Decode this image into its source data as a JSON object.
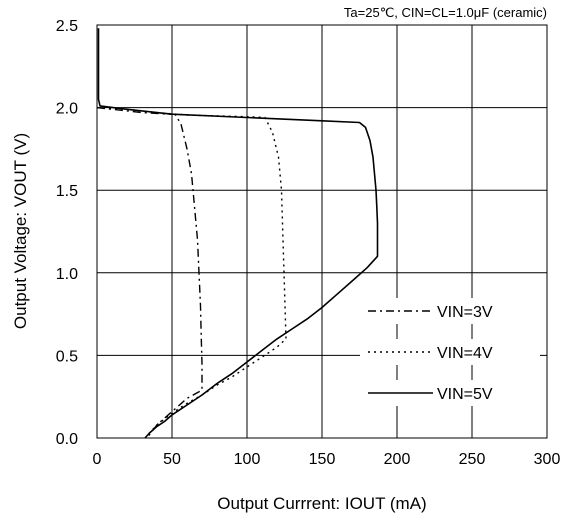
{
  "chart_data": {
    "type": "line",
    "title": "",
    "annotation": "Ta=25℃, CIN=CL=1.0μF (ceramic)",
    "xlabel": "Output Currrent: IOUT (mA)",
    "ylabel": "Output Voltage: VOUT (V)",
    "xlim": [
      0,
      300
    ],
    "ylim": [
      0,
      2.5
    ],
    "xticks": [
      0,
      50,
      100,
      150,
      200,
      250,
      300
    ],
    "yticks": [
      0.0,
      0.5,
      1.0,
      1.5,
      2.0,
      2.5
    ],
    "xtick_labels": [
      "0",
      "50",
      "100",
      "150",
      "200",
      "250",
      "300"
    ],
    "ytick_labels": [
      "0.0",
      "0.5",
      "1.0",
      "1.5",
      "2.0",
      "2.5"
    ],
    "grid": true,
    "legend_position": "bottom-right",
    "series": [
      {
        "name": "VIN=3V",
        "style": "dash-dot",
        "color": "#000000",
        "points": [
          [
            0,
            2.0
          ],
          [
            10,
            1.99
          ],
          [
            20,
            1.98
          ],
          [
            30,
            1.97
          ],
          [
            40,
            1.965
          ],
          [
            48,
            1.96
          ],
          [
            52,
            1.96
          ],
          [
            56,
            1.9
          ],
          [
            60,
            1.75
          ],
          [
            63,
            1.6
          ],
          [
            65,
            1.4
          ],
          [
            67,
            1.2
          ],
          [
            68,
            1.0
          ],
          [
            69,
            0.8
          ],
          [
            69.5,
            0.6
          ],
          [
            70,
            0.45
          ],
          [
            70,
            0.29
          ],
          [
            60,
            0.24
          ],
          [
            50,
            0.16
          ],
          [
            40,
            0.08
          ],
          [
            35,
            0.02
          ],
          [
            33,
            0.0
          ]
        ]
      },
      {
        "name": "VIN=4V",
        "style": "dotted",
        "color": "#000000",
        "points": [
          [
            0,
            2.0
          ],
          [
            20,
            1.99
          ],
          [
            40,
            1.97
          ],
          [
            60,
            1.955
          ],
          [
            80,
            1.95
          ],
          [
            100,
            1.945
          ],
          [
            112,
            1.94
          ],
          [
            117,
            1.85
          ],
          [
            121,
            1.7
          ],
          [
            123,
            1.5
          ],
          [
            124,
            1.2
          ],
          [
            125,
            0.9
          ],
          [
            126,
            0.6
          ],
          [
            120,
            0.55
          ],
          [
            110,
            0.49
          ],
          [
            100,
            0.43
          ],
          [
            90,
            0.37
          ],
          [
            80,
            0.32
          ],
          [
            70,
            0.26
          ],
          [
            60,
            0.21
          ],
          [
            50,
            0.15
          ],
          [
            40,
            0.08
          ],
          [
            35,
            0.03
          ],
          [
            33,
            0.0
          ]
        ]
      },
      {
        "name": "VIN=5V",
        "style": "solid",
        "color": "#000000",
        "points": [
          [
            1,
            2.48
          ],
          [
            1,
            2.05
          ],
          [
            2,
            2.01
          ],
          [
            20,
            1.99
          ],
          [
            50,
            1.96
          ],
          [
            100,
            1.94
          ],
          [
            150,
            1.92
          ],
          [
            175,
            1.91
          ],
          [
            179,
            1.88
          ],
          [
            182,
            1.8
          ],
          [
            184,
            1.7
          ],
          [
            185,
            1.6
          ],
          [
            186,
            1.5
          ],
          [
            186.5,
            1.4
          ],
          [
            187,
            1.3
          ],
          [
            187,
            1.18
          ],
          [
            187,
            1.1
          ],
          [
            180,
            1.03
          ],
          [
            170,
            0.95
          ],
          [
            160,
            0.87
          ],
          [
            150,
            0.79
          ],
          [
            140,
            0.72
          ],
          [
            130,
            0.66
          ],
          [
            120,
            0.6
          ],
          [
            110,
            0.53
          ],
          [
            100,
            0.46
          ],
          [
            90,
            0.39
          ],
          [
            80,
            0.33
          ],
          [
            70,
            0.26
          ],
          [
            60,
            0.2
          ],
          [
            50,
            0.14
          ],
          [
            45,
            0.1
          ],
          [
            40,
            0.07
          ],
          [
            35,
            0.03
          ],
          [
            32,
            0.0
          ]
        ]
      }
    ]
  }
}
